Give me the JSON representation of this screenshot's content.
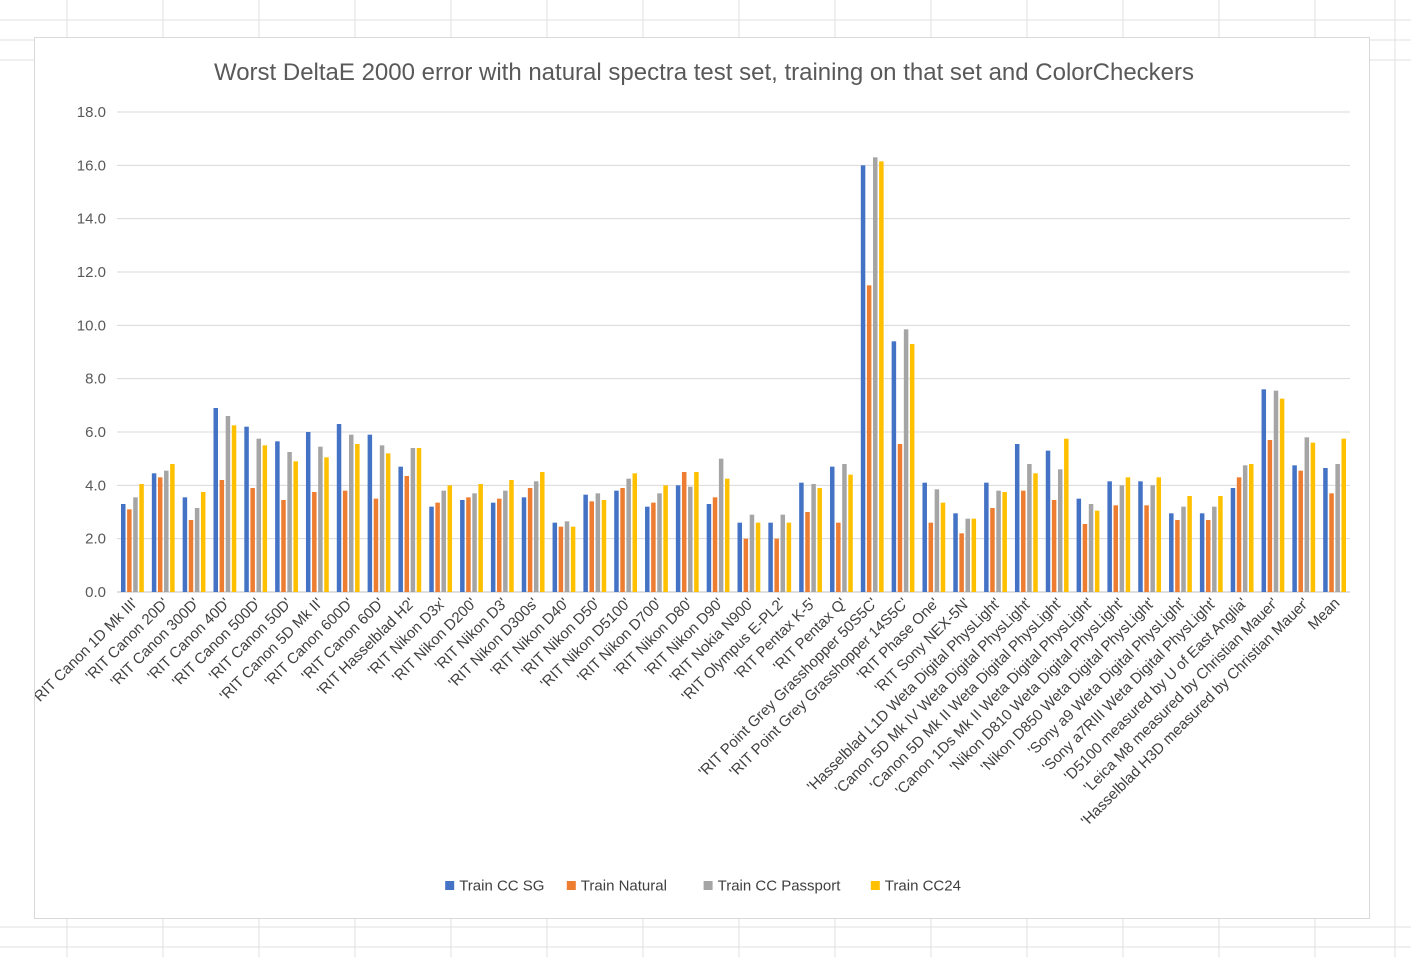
{
  "chart_data": {
    "type": "bar",
    "title": "Worst DeltaE 2000 error with natural spectra test set, training on that set and ColorCheckers",
    "xlabel": "",
    "ylabel": "",
    "ylim": [
      0,
      18
    ],
    "yticks": [
      "0.0",
      "2.0",
      "4.0",
      "6.0",
      "8.0",
      "10.0",
      "12.0",
      "14.0",
      "16.0",
      "18.0"
    ],
    "grid": true,
    "legend_position": "bottom",
    "categories": [
      "'RIT Canon 1D Mk III'",
      "'RIT Canon 20D'",
      "'RIT Canon 300D'",
      "'RIT Canon 40D'",
      "'RIT Canon 500D'",
      "'RIT Canon 50D'",
      "'RIT Canon 5D Mk II'",
      "'RIT Canon 600D'",
      "'RIT Canon 60D'",
      "'RIT Hasselblad H2'",
      "'RIT Nikon D3x'",
      "'RIT Nikon D200'",
      "'RIT Nikon D3'",
      "'RIT Nikon D300s'",
      "'RIT Nikon D40'",
      "'RIT Nikon D50'",
      "'RIT Nikon D5100'",
      "'RIT Nikon D700'",
      "'RIT Nikon D80'",
      "'RIT Nikon D90'",
      "'RIT Nokia N900'",
      "'RIT Olympus E-PL2'",
      "'RIT Pentax K-5'",
      "'RIT Pentax Q'",
      "'RIT Point Grey Grasshopper 50S5C'",
      "'RIT Point Grey Grasshopper 14S5C'",
      "'RIT Phase One'",
      "'RIT Sony NEX-5N'",
      "'Hasselblad L1D Weta Digital PhysLight'",
      "'Canon 5D Mk IV Weta Digital PhysLight'",
      "'Canon 5D Mk II Weta Digital PhysLight'",
      "'Canon 1Ds Mk II Weta Digital PhysLight'",
      "'Nikon D810 Weta Digital PhysLight'",
      "'Nikon D850 Weta Digital PhysLight'",
      "'Sony a9 Weta Digital PhysLight'",
      "'Sony a7RIII Weta Digital PhysLight'",
      "'D5100 measured by U of East Anglia'",
      "'Leica M8 measured by Christian Mauer'",
      "'Hasselblad H3D measured by Christian Mauer'",
      "Mean"
    ],
    "series": [
      {
        "name": "Train CC SG",
        "color": "#4472c4",
        "values": [
          3.3,
          4.45,
          3.55,
          6.9,
          6.2,
          5.65,
          6.0,
          6.3,
          5.9,
          4.7,
          3.2,
          3.45,
          3.35,
          3.55,
          2.6,
          3.65,
          3.8,
          3.2,
          4.0,
          3.3,
          2.6,
          2.6,
          4.1,
          4.7,
          16.0,
          9.4,
          4.1,
          2.95,
          4.1,
          5.55,
          5.3,
          3.5,
          4.15,
          4.15,
          2.95,
          2.95,
          3.9,
          7.6,
          4.75,
          4.65
        ]
      },
      {
        "name": "Train Natural",
        "color": "#ed7d31",
        "values": [
          3.1,
          4.3,
          2.7,
          4.2,
          3.9,
          3.45,
          3.75,
          3.8,
          3.5,
          4.35,
          3.35,
          3.55,
          3.5,
          3.9,
          2.45,
          3.4,
          3.9,
          3.35,
          4.5,
          3.55,
          2.0,
          2.0,
          3.0,
          2.6,
          11.5,
          5.55,
          2.6,
          2.2,
          3.15,
          3.8,
          3.45,
          2.55,
          3.25,
          3.25,
          2.7,
          2.7,
          4.3,
          5.7,
          4.55,
          3.7
        ]
      },
      {
        "name": "Train CC Passport",
        "color": "#a5a5a5",
        "values": [
          3.55,
          4.55,
          3.15,
          6.6,
          5.75,
          5.25,
          5.45,
          5.9,
          5.5,
          5.4,
          3.8,
          3.7,
          3.8,
          4.15,
          2.65,
          3.7,
          4.25,
          3.7,
          3.95,
          5.0,
          2.9,
          2.9,
          4.05,
          4.8,
          16.3,
          9.85,
          3.85,
          2.75,
          3.8,
          4.8,
          4.6,
          3.3,
          4.0,
          4.0,
          3.2,
          3.2,
          4.75,
          7.55,
          5.8,
          4.8
        ]
      },
      {
        "name": "Train CC24",
        "color": "#ffc000",
        "values": [
          4.05,
          4.8,
          3.75,
          6.25,
          5.5,
          4.9,
          5.05,
          5.55,
          5.2,
          5.4,
          4.0,
          4.05,
          4.2,
          4.5,
          2.45,
          3.45,
          4.45,
          4.0,
          4.5,
          4.25,
          2.6,
          2.6,
          3.9,
          4.4,
          16.15,
          9.3,
          3.35,
          2.75,
          3.75,
          4.45,
          5.75,
          3.05,
          4.3,
          4.3,
          3.6,
          3.6,
          4.8,
          7.25,
          5.6,
          5.75
        ]
      }
    ]
  }
}
